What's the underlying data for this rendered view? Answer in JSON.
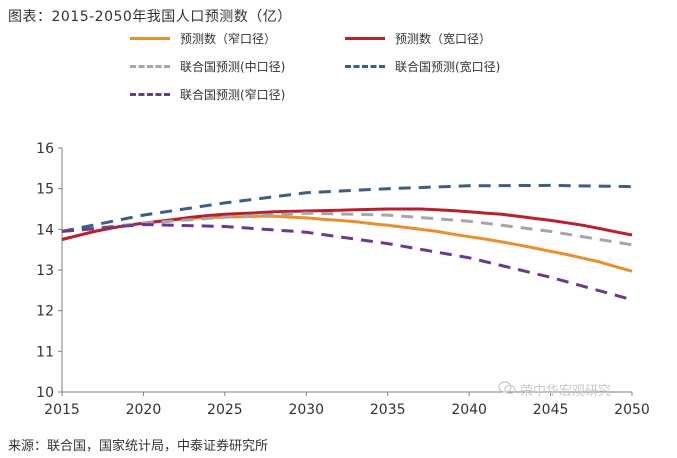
{
  "header": {
    "title": "图表：2015-2050年我国人口预测数（亿）"
  },
  "footer": {
    "source": "来源：联合国，国家统计局，中泰证券研究所"
  },
  "watermark": {
    "text": "荣中华宏观研究"
  },
  "chart_data": {
    "type": "line",
    "title": "图表：2015-2050年我国人口预测数（亿）",
    "xlabel": "",
    "ylabel": "",
    "x": [
      2015,
      2020,
      2025,
      2030,
      2035,
      2040,
      2045,
      2050
    ],
    "xlim": [
      2015,
      2050
    ],
    "ylim": [
      10,
      16
    ],
    "yticks": [
      10,
      11,
      12,
      13,
      14,
      15,
      16
    ],
    "grid": false,
    "legend_position": "top",
    "series": [
      {
        "name": "预测数（窄口径）",
        "color": "#E8902F",
        "style": "solid",
        "points": [
          [
            2015,
            13.75
          ],
          [
            2016,
            13.85
          ],
          [
            2017,
            13.95
          ],
          [
            2018,
            14.03
          ],
          [
            2019,
            14.1
          ],
          [
            2020,
            14.15
          ],
          [
            2021,
            14.2
          ],
          [
            2022,
            14.24
          ],
          [
            2023,
            14.27
          ],
          [
            2024,
            14.29
          ],
          [
            2025,
            14.3
          ],
          [
            2026,
            14.31
          ],
          [
            2027,
            14.32
          ],
          [
            2028,
            14.32
          ],
          [
            2029,
            14.3
          ],
          [
            2030,
            14.28
          ],
          [
            2031,
            14.25
          ],
          [
            2032,
            14.22
          ],
          [
            2033,
            14.19
          ],
          [
            2034,
            14.14
          ],
          [
            2035,
            14.1
          ],
          [
            2036,
            14.05
          ],
          [
            2037,
            14.0
          ],
          [
            2038,
            13.95
          ],
          [
            2039,
            13.88
          ],
          [
            2040,
            13.82
          ],
          [
            2041,
            13.76
          ],
          [
            2042,
            13.69
          ],
          [
            2043,
            13.62
          ],
          [
            2044,
            13.54
          ],
          [
            2045,
            13.46
          ],
          [
            2046,
            13.38
          ],
          [
            2047,
            13.29
          ],
          [
            2048,
            13.2
          ],
          [
            2049,
            13.08
          ],
          [
            2050,
            12.97
          ]
        ]
      },
      {
        "name": "预测数（宽口径）",
        "color": "#B8202E",
        "style": "solid",
        "points": [
          [
            2015,
            13.75
          ],
          [
            2016,
            13.85
          ],
          [
            2017,
            13.95
          ],
          [
            2018,
            14.03
          ],
          [
            2019,
            14.1
          ],
          [
            2020,
            14.15
          ],
          [
            2021,
            14.2
          ],
          [
            2022,
            14.25
          ],
          [
            2023,
            14.3
          ],
          [
            2024,
            14.34
          ],
          [
            2025,
            14.37
          ],
          [
            2026,
            14.39
          ],
          [
            2027,
            14.41
          ],
          [
            2028,
            14.43
          ],
          [
            2029,
            14.44
          ],
          [
            2030,
            14.45
          ],
          [
            2031,
            14.46
          ],
          [
            2032,
            14.47
          ],
          [
            2033,
            14.48
          ],
          [
            2034,
            14.49
          ],
          [
            2035,
            14.5
          ],
          [
            2036,
            14.5
          ],
          [
            2037,
            14.5
          ],
          [
            2038,
            14.48
          ],
          [
            2039,
            14.46
          ],
          [
            2040,
            14.43
          ],
          [
            2041,
            14.4
          ],
          [
            2042,
            14.37
          ],
          [
            2043,
            14.32
          ],
          [
            2044,
            14.27
          ],
          [
            2045,
            14.22
          ],
          [
            2046,
            14.16
          ],
          [
            2047,
            14.1
          ],
          [
            2048,
            14.02
          ],
          [
            2049,
            13.94
          ],
          [
            2050,
            13.86
          ]
        ]
      },
      {
        "name": "联合国预测(中口径)",
        "color": "#A6A6A6",
        "style": "dashed",
        "points": [
          [
            2015,
            13.95
          ],
          [
            2020,
            14.15
          ],
          [
            2025,
            14.3
          ],
          [
            2030,
            14.4
          ],
          [
            2035,
            14.35
          ],
          [
            2040,
            14.2
          ],
          [
            2045,
            13.95
          ],
          [
            2050,
            13.62
          ]
        ]
      },
      {
        "name": "联合国预测(宽口径)",
        "color": "#3D5F82",
        "style": "dashed",
        "points": [
          [
            2015,
            13.95
          ],
          [
            2020,
            14.35
          ],
          [
            2025,
            14.65
          ],
          [
            2030,
            14.9
          ],
          [
            2035,
            15.0
          ],
          [
            2040,
            15.07
          ],
          [
            2045,
            15.08
          ],
          [
            2050,
            15.05
          ]
        ]
      },
      {
        "name": "联合国预测(窄口径)",
        "color": "#6B3A8C",
        "style": "dashed",
        "points": [
          [
            2015,
            13.95
          ],
          [
            2020,
            14.12
          ],
          [
            2025,
            14.07
          ],
          [
            2030,
            13.93
          ],
          [
            2035,
            13.65
          ],
          [
            2040,
            13.3
          ],
          [
            2045,
            12.82
          ],
          [
            2050,
            12.27
          ]
        ]
      }
    ]
  }
}
